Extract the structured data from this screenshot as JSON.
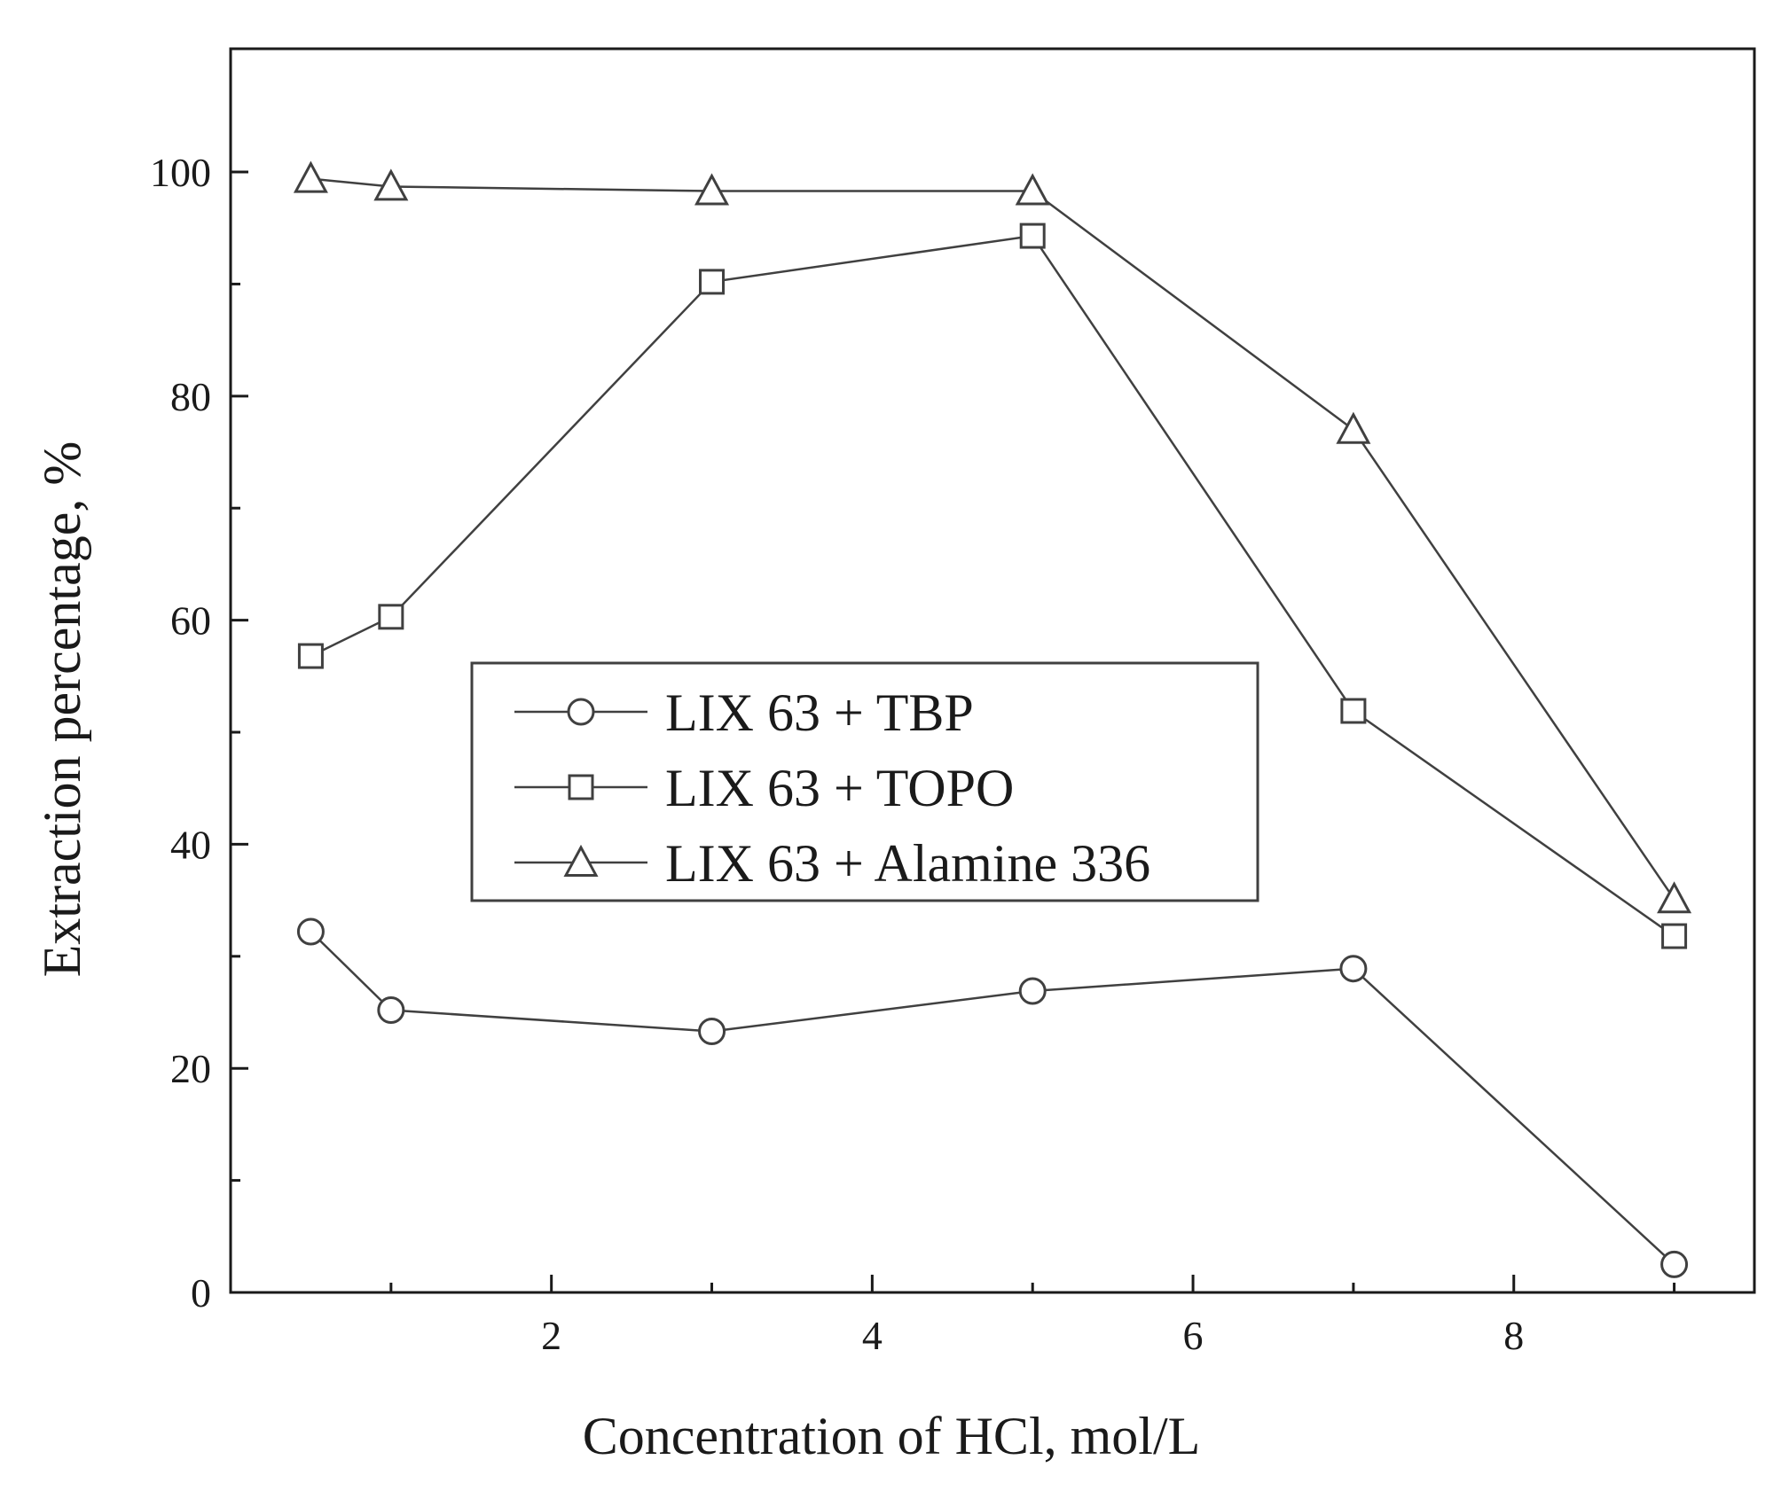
{
  "chart_data": {
    "type": "line",
    "title": "",
    "xlabel": "Concentration of HCl, mol/L",
    "ylabel": "Extraction percentage, %",
    "xlim": [
      0,
      9.5
    ],
    "ylim": [
      0,
      100
    ],
    "y_axis_max": 111,
    "x_ticks": [
      2,
      4,
      6,
      8
    ],
    "x_minor_ticks": [
      1,
      3,
      5,
      7,
      9
    ],
    "y_ticks": [
      0,
      20,
      40,
      60,
      80,
      100
    ],
    "y_minor_ticks": [
      10,
      30,
      50,
      70,
      90
    ],
    "grid": false,
    "legend_position": "center-left",
    "series": [
      {
        "name": "LIX 63 + TBP",
        "marker": "circle",
        "x": [
          0.5,
          1,
          3,
          5,
          7,
          9
        ],
        "y": [
          32.2,
          25.2,
          23.3,
          26.9,
          28.9,
          2.5
        ]
      },
      {
        "name": "LIX 63 + TOPO",
        "marker": "square",
        "x": [
          0.5,
          1,
          3,
          5,
          7,
          9
        ],
        "y": [
          56.8,
          60.3,
          90.2,
          94.3,
          51.9,
          31.8
        ]
      },
      {
        "name": "LIX 63 + Alamine 336",
        "marker": "triangle",
        "x": [
          0.5,
          1,
          3,
          5,
          7,
          9
        ],
        "y": [
          99.4,
          98.7,
          98.3,
          98.3,
          77.0,
          35.1
        ]
      }
    ],
    "colors": {
      "line": "#404040",
      "marker_fill": "#ffffff",
      "axis": "#1a1a1a"
    }
  }
}
